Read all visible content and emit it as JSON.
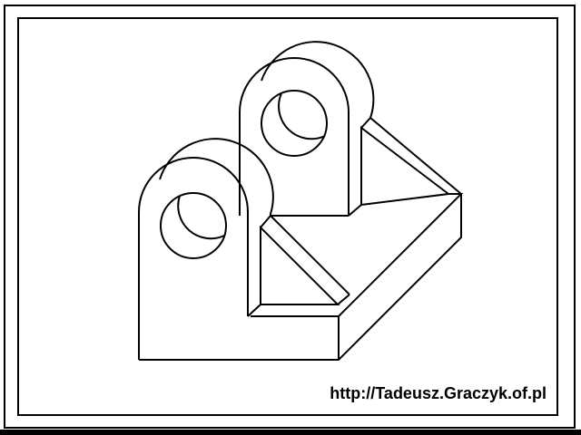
{
  "caption": {
    "url": "http://Tadeusz.Graczyk.of.pl"
  },
  "colors": {
    "background": "#ffffff",
    "ink": "#000000"
  }
}
